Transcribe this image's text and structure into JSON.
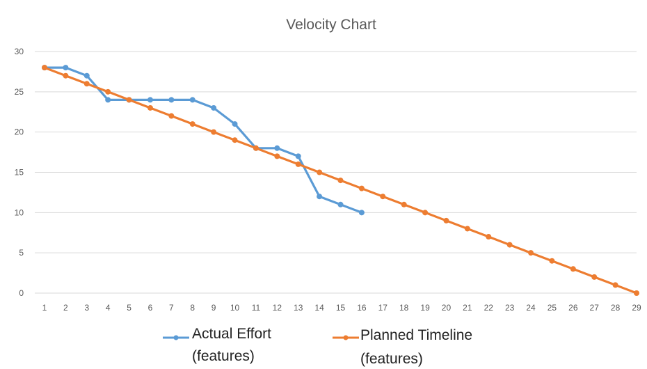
{
  "chart_data": {
    "type": "line",
    "title": "Velocity Chart",
    "xlabel": "",
    "ylabel": "",
    "x": [
      1,
      2,
      3,
      4,
      5,
      6,
      7,
      8,
      9,
      10,
      11,
      12,
      13,
      14,
      15,
      16,
      17,
      18,
      19,
      20,
      21,
      22,
      23,
      24,
      25,
      26,
      27,
      28,
      29
    ],
    "ylim": [
      0,
      30
    ],
    "yticks": [
      0,
      5,
      10,
      15,
      20,
      25,
      30
    ],
    "grid": true,
    "legend_position": "bottom",
    "series": [
      {
        "name_line1": "Actual Effort",
        "name_line2": "(features)",
        "color": "#5b9bd5",
        "x": [
          1,
          2,
          3,
          4,
          5,
          6,
          7,
          8,
          9,
          10,
          11,
          12,
          13,
          14,
          15,
          16
        ],
        "values": [
          28,
          28,
          27,
          24,
          24,
          24,
          24,
          24,
          23,
          21,
          18,
          18,
          17,
          12,
          11,
          10
        ]
      },
      {
        "name_line1": "Planned Timeline",
        "name_line2": "(features)",
        "color": "#ed7d31",
        "x": [
          1,
          2,
          3,
          4,
          5,
          6,
          7,
          8,
          9,
          10,
          11,
          12,
          13,
          14,
          15,
          16,
          17,
          18,
          19,
          20,
          21,
          22,
          23,
          24,
          25,
          26,
          27,
          28,
          29
        ],
        "values": [
          28,
          27,
          26,
          25,
          24,
          23,
          22,
          21,
          20,
          19,
          18,
          17,
          16,
          15,
          14,
          13,
          12,
          11,
          10,
          9,
          8,
          7,
          6,
          5,
          4,
          3,
          2,
          1,
          0
        ]
      }
    ]
  }
}
